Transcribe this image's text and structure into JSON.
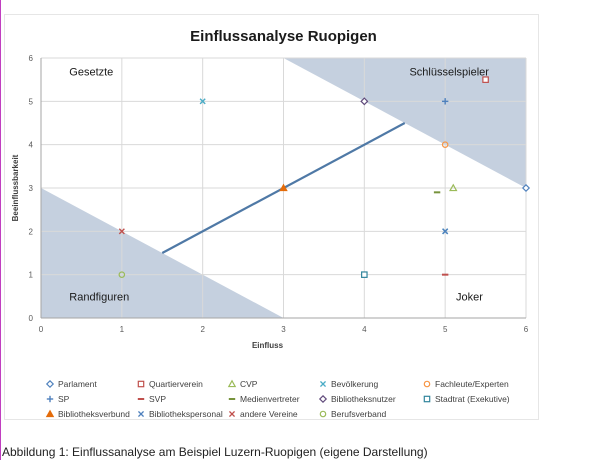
{
  "figure_caption": "Abbildung 1: Einflussanalyse am Beispiel Luzern-Ruopigen (eigene Darstellung)",
  "chart_data": {
    "type": "scatter",
    "title": "Einflussanalyse Ruopigen",
    "xlabel": "Einfluss",
    "ylabel": "Beeinflussbarkeit",
    "xlim": [
      0,
      6
    ],
    "ylim": [
      0,
      6
    ],
    "x_ticks": [
      "0",
      "1",
      "2",
      "3",
      "4",
      "5",
      "6"
    ],
    "y_ticks": [
      "0",
      "1",
      "2",
      "3",
      "4",
      "5",
      "6"
    ],
    "grid": true,
    "legend_position": "bottom",
    "quadrant_labels": {
      "top_left": "Gesetzte",
      "top_right": "Schlüsselspieler",
      "bottom_left": "Randfiguren",
      "bottom_right": "Joker"
    },
    "shaded_regions": [
      {
        "points": [
          [
            3,
            6
          ],
          [
            6,
            6
          ],
          [
            6,
            3
          ]
        ],
        "color": "#c5d0df"
      },
      {
        "points": [
          [
            0,
            3
          ],
          [
            0,
            0
          ],
          [
            3,
            0
          ]
        ],
        "color": "#c5d0df"
      }
    ],
    "trend_line": {
      "x": [
        1.5,
        4.5
      ],
      "y": [
        1.5,
        4.5
      ],
      "color": "#4f79a6"
    },
    "series": [
      {
        "name": "Parlament",
        "marker": "diamond-open",
        "color": "#4f81bd",
        "points": [
          [
            6,
            3
          ]
        ]
      },
      {
        "name": "Quartierverein",
        "marker": "square-open",
        "color": "#c0504d",
        "points": [
          [
            5.5,
            5.5
          ]
        ]
      },
      {
        "name": "CVP",
        "marker": "triangle-open",
        "color": "#9bbb59",
        "points": [
          [
            5.1,
            3
          ]
        ]
      },
      {
        "name": "Bevölkerung",
        "marker": "x",
        "color": "#4bacc6",
        "points": [
          [
            2,
            5
          ],
          [
            5,
            2
          ]
        ]
      },
      {
        "name": "Fachleute/Experten",
        "marker": "circle-open",
        "color": "#f79646",
        "points": [
          [
            5,
            4
          ]
        ]
      },
      {
        "name": "SP",
        "marker": "plus",
        "color": "#4f81bd",
        "points": [
          [
            5,
            5
          ]
        ]
      },
      {
        "name": "SVP",
        "marker": "dash",
        "color": "#c0504d",
        "points": [
          [
            5,
            1
          ]
        ]
      },
      {
        "name": "Medienvertreter",
        "marker": "dash",
        "color": "#77933c",
        "points": [
          [
            4.9,
            2.9
          ]
        ]
      },
      {
        "name": "Bibliotheksnutzer",
        "marker": "diamond-open",
        "color": "#604a7b",
        "points": [
          [
            4,
            5
          ]
        ]
      },
      {
        "name": "Stadtrat (Exekutive)",
        "marker": "square-open",
        "color": "#31859c",
        "points": [
          [
            4,
            1
          ]
        ]
      },
      {
        "name": "Bibliotheksverbund",
        "marker": "triangle",
        "color": "#e46c0a",
        "points": [
          [
            3,
            3
          ]
        ]
      },
      {
        "name": "Bibliothekspersonal",
        "marker": "x",
        "color": "#4f81bd",
        "points": [
          [
            5,
            2
          ]
        ]
      },
      {
        "name": "andere Vereine",
        "marker": "x",
        "color": "#c0504d",
        "points": [
          [
            1,
            2
          ]
        ]
      },
      {
        "name": "Berufsverband",
        "marker": "circle-open",
        "color": "#9bbb59",
        "points": [
          [
            1,
            1
          ]
        ]
      }
    ]
  }
}
